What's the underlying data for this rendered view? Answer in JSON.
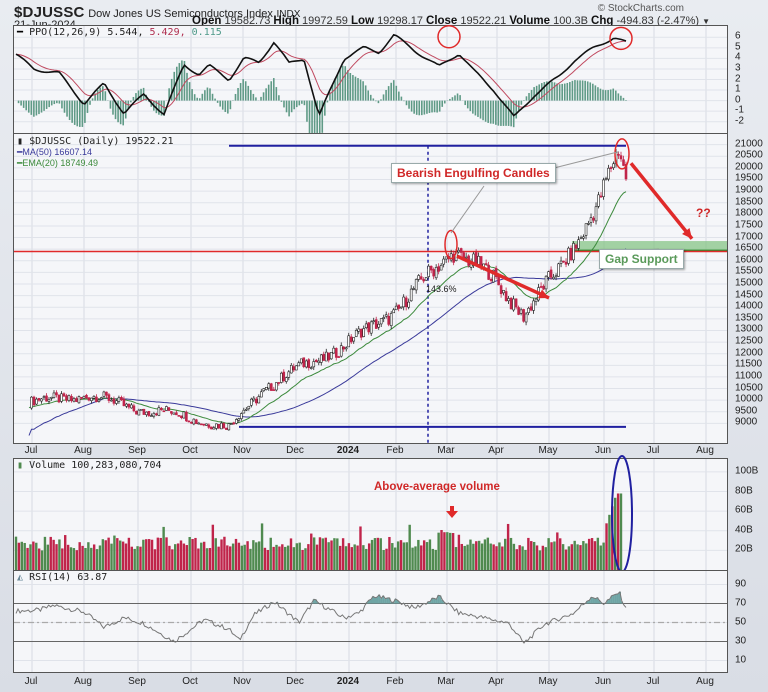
{
  "header": {
    "symbol": "$DJUSSC",
    "name": "Dow Jones US Semiconductors Index",
    "exchange": "INDX",
    "date": "21-Jun-2024",
    "brand": "© StockCharts.com",
    "open_label": "Open",
    "open": "19582.73",
    "high_label": "High",
    "high": "19972.59",
    "low_label": "Low",
    "low": "19298.17",
    "close_label": "Close",
    "close": "19522.21",
    "volume_label": "Volume",
    "volume": "100.3B",
    "chg_label": "Chg",
    "chg": "-494.83 (-2.47%)"
  },
  "ppo": {
    "label": "PPO(12,26,9)",
    "v1": "5.544,",
    "v2": "5.429,",
    "v3": "0.115",
    "ticks": [
      "6",
      "5",
      "4",
      "3",
      "2",
      "1",
      "0",
      "-1",
      "-2"
    ]
  },
  "price": {
    "label": "$DJUSSC (Daily) 19522.21",
    "ma50": "MA(50) 16607.14",
    "ema20": "EMA(20) 18749.49",
    "ticks": [
      "21000",
      "20500",
      "20000",
      "19500",
      "19000",
      "18500",
      "18000",
      "17500",
      "17000",
      "16500",
      "16000",
      "15500",
      "15000",
      "14500",
      "14000",
      "13500",
      "13000",
      "12500",
      "12000",
      "11500",
      "11000",
      "10500",
      "10000",
      "9500",
      "9000"
    ],
    "pct_label": "143.6%"
  },
  "volume": {
    "label": "Volume 100,283,080,704",
    "ticks": [
      "100B",
      "80B",
      "60B",
      "40B",
      "20B"
    ]
  },
  "rsi": {
    "label": "RSI(14) 63.87",
    "ticks": [
      "90",
      "70",
      "50",
      "30",
      "10"
    ]
  },
  "xaxis": {
    "labels": [
      "Jul",
      "Aug",
      "Sep",
      "Oct",
      "Nov",
      "Dec",
      "2024",
      "Feb",
      "Mar",
      "Apr",
      "May",
      "Jun",
      "Jul",
      "Aug"
    ]
  },
  "annotations": {
    "bearish": "Bearish Engulfing Candles",
    "gap": "Gap Support",
    "qq": "??",
    "volume_note": "Above-average volume"
  },
  "colors": {
    "up": "#4f8a4f",
    "down": "#c0244a",
    "ma50": "#3a3a9a",
    "ema20": "#3c8a3c",
    "annot": "#e02a2a",
    "gap": "#7fc27f",
    "ellipse": "#2020a0"
  },
  "chart_data": {
    "type": "candlestick",
    "title": "$DJUSSC Dow Jones US Semiconductors Index (Daily)",
    "x_range": [
      "Jul 2023",
      "Aug 2024"
    ],
    "price_ylim": [
      8500,
      21200
    ],
    "price_path": [
      {
        "date": "2023-07",
        "close": 9900
      },
      {
        "date": "2023-08",
        "close": 10200
      },
      {
        "date": "2023-09",
        "close": 9600
      },
      {
        "date": "2023-10",
        "close": 9400
      },
      {
        "date": "2023-10-27",
        "close": 8800
      },
      {
        "date": "2023-11",
        "close": 10500
      },
      {
        "date": "2023-12",
        "close": 11500
      },
      {
        "date": "2024-01",
        "close": 12300
      },
      {
        "date": "2024-02",
        "close": 14000
      },
      {
        "date": "2024-03-07",
        "close": 16500
      },
      {
        "date": "2024-04",
        "close": 15200
      },
      {
        "date": "2024-04-19",
        "close": 13700
      },
      {
        "date": "2024-05",
        "close": 15600
      },
      {
        "date": "2024-06",
        "close": 18500
      },
      {
        "date": "2024-06-20",
        "close": 20700
      },
      {
        "date": "2024-06-21",
        "close": 19522.21
      }
    ],
    "indicators": {
      "MA50_last": 16607.14,
      "EMA20_last": 18749.49,
      "PPO": {
        "ppo": 5.544,
        "signal": 5.429,
        "hist": 0.115,
        "ylim": [
          -2.5,
          6.5
        ]
      },
      "RSI14_last": 63.87,
      "RSI_levels": [
        30,
        50,
        70
      ],
      "Volume_last": 100283080704,
      "volume_ylim_B": [
        0,
        100
      ]
    },
    "levels": {
      "resistance_red": 16400,
      "gap_support_zone": [
        16500,
        16800
      ],
      "top_blue": 20950,
      "bottom_blue": 8850
    },
    "annotations": [
      "Bearish Engulfing Candles",
      "Gap Support",
      "??",
      "Above-average volume",
      "143.6%"
    ]
  }
}
